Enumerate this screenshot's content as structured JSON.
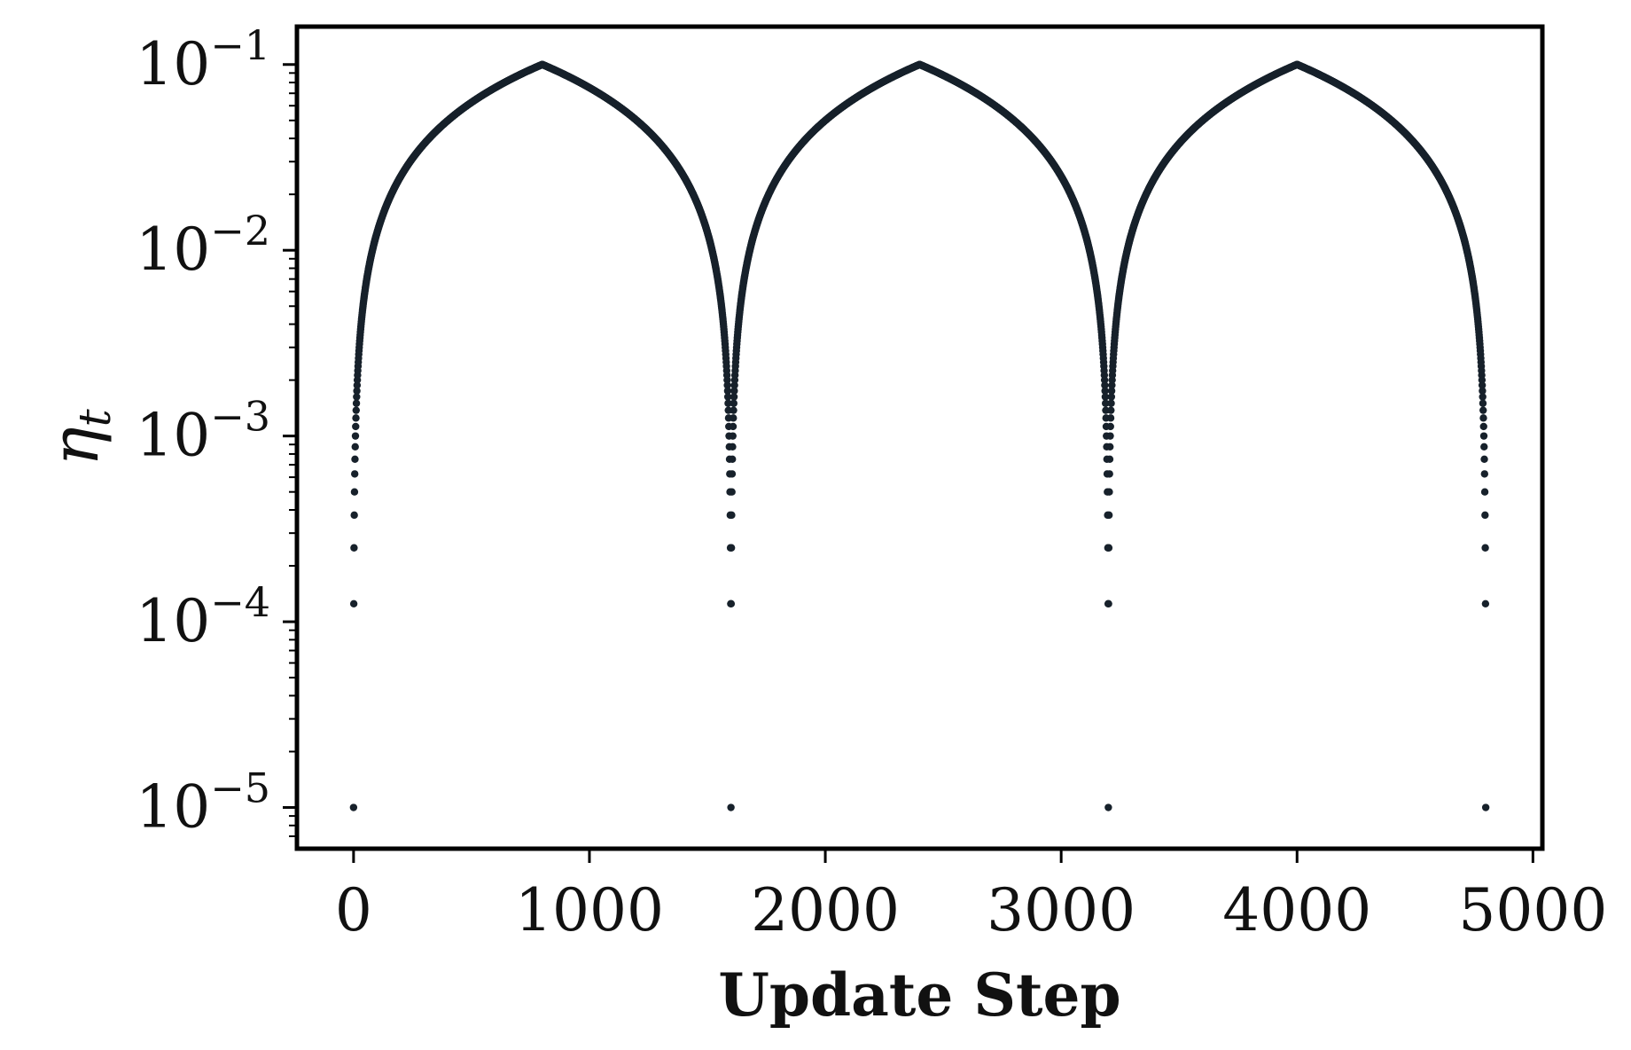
{
  "chart_data": {
    "type": "scatter",
    "title": "",
    "xlabel": "Update Step",
    "ylabel": {
      "base": "η",
      "subscript": "t"
    },
    "xlim": [
      -240,
      5040
    ],
    "ylim": [
      6e-06,
      0.16
    ],
    "yscale": "log",
    "grid": false,
    "legend": "none",
    "x_ticks": [
      {
        "value": 0,
        "label": "0"
      },
      {
        "value": 1000,
        "label": "1000"
      },
      {
        "value": 2000,
        "label": "2000"
      },
      {
        "value": 3000,
        "label": "3000"
      },
      {
        "value": 4000,
        "label": "4000"
      },
      {
        "value": 5000,
        "label": "5000"
      }
    ],
    "y_ticks": [
      {
        "value": 1e-05,
        "base": "10",
        "exp": "−5"
      },
      {
        "value": 0.0001,
        "base": "10",
        "exp": "−4"
      },
      {
        "value": 0.001,
        "base": "10",
        "exp": "−3"
      },
      {
        "value": 0.01,
        "base": "10",
        "exp": "−2"
      },
      {
        "value": 0.1,
        "base": "10",
        "exp": "−1"
      }
    ],
    "series": [
      {
        "schedule": "cyclical triangular",
        "x_start": 0,
        "x_end": 4800,
        "step": 1,
        "cycle_length": 1600,
        "peak_step": 800,
        "min_value": 1e-05,
        "max_value": 0.1
      }
    ],
    "colors": {
      "points": "#17212b",
      "axes": "#000000",
      "background": "#ffffff"
    }
  }
}
